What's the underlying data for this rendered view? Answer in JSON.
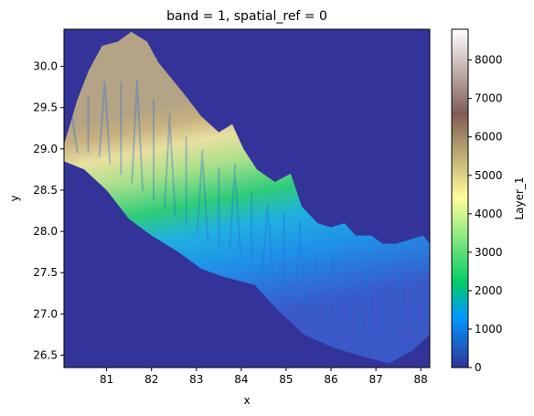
{
  "chart_data": {
    "type": "heatmap",
    "title": "band = 1, spatial_ref = 0",
    "xlabel": "x",
    "ylabel": "y",
    "xlim": [
      80.05,
      88.2
    ],
    "ylim": [
      26.35,
      30.45
    ],
    "x_ticks": [
      81,
      82,
      83,
      84,
      85,
      86,
      87,
      88
    ],
    "y_ticks": [
      26.5,
      27.0,
      27.5,
      28.0,
      28.5,
      29.0,
      29.5,
      30.0
    ],
    "background_value": 0,
    "colorbar": {
      "label": "Layer_1",
      "colormap": "terrain",
      "range": [
        0,
        8800
      ],
      "ticks": [
        0,
        1000,
        2000,
        3000,
        4000,
        5000,
        6000,
        7000,
        8000
      ]
    },
    "colormap_stops": [
      {
        "v": 0.0,
        "color": "#333399"
      },
      {
        "v": 0.15,
        "color": "#0099ff"
      },
      {
        "v": 0.25,
        "color": "#00cc66"
      },
      {
        "v": 0.5,
        "color": "#ffff99"
      },
      {
        "v": 0.75,
        "color": "#805c54"
      },
      {
        "v": 1.0,
        "color": "#ffffff"
      }
    ],
    "boundary_north": [
      [
        80.05,
        29.05
      ],
      [
        80.35,
        29.6
      ],
      [
        80.6,
        29.95
      ],
      [
        80.9,
        30.25
      ],
      [
        81.25,
        30.3
      ],
      [
        81.55,
        30.42
      ],
      [
        81.9,
        30.3
      ],
      [
        82.15,
        30.05
      ],
      [
        82.45,
        29.85
      ],
      [
        82.75,
        29.65
      ],
      [
        83.1,
        29.4
      ],
      [
        83.5,
        29.2
      ],
      [
        83.8,
        29.3
      ],
      [
        84.05,
        29.0
      ],
      [
        84.35,
        28.75
      ],
      [
        84.75,
        28.6
      ],
      [
        85.1,
        28.7
      ],
      [
        85.35,
        28.3
      ],
      [
        85.7,
        28.1
      ],
      [
        86.0,
        28.05
      ],
      [
        86.3,
        28.1
      ],
      [
        86.55,
        27.95
      ],
      [
        86.9,
        27.95
      ],
      [
        87.15,
        27.85
      ],
      [
        87.45,
        27.85
      ],
      [
        87.75,
        27.9
      ],
      [
        88.05,
        27.95
      ],
      [
        88.2,
        27.85
      ]
    ],
    "boundary_south": [
      [
        88.2,
        26.75
      ],
      [
        87.8,
        26.55
      ],
      [
        87.3,
        26.4
      ],
      [
        86.6,
        26.5
      ],
      [
        86.0,
        26.6
      ],
      [
        85.4,
        26.75
      ],
      [
        84.8,
        27.05
      ],
      [
        84.3,
        27.35
      ],
      [
        83.6,
        27.45
      ],
      [
        83.1,
        27.55
      ],
      [
        82.6,
        27.75
      ],
      [
        82.0,
        27.95
      ],
      [
        81.5,
        28.15
      ],
      [
        81.0,
        28.5
      ],
      [
        80.5,
        28.75
      ],
      [
        80.05,
        28.85
      ]
    ]
  }
}
